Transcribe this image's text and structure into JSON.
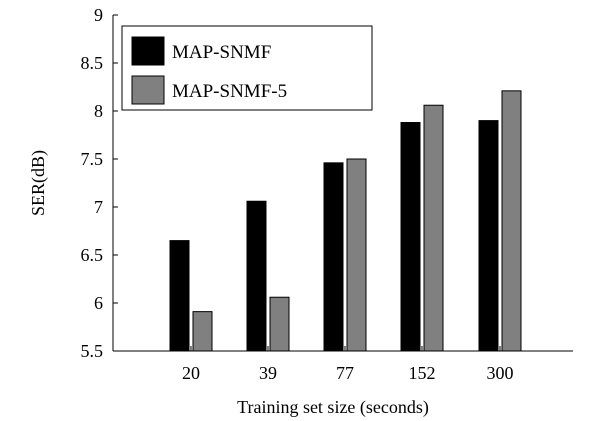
{
  "chart_data": {
    "type": "bar",
    "categories": [
      "20",
      "39",
      "77",
      "152",
      "300"
    ],
    "series": [
      {
        "name": "MAP-SNMF",
        "values": [
          6.65,
          7.06,
          7.46,
          7.88,
          7.9
        ],
        "color": "#000000"
      },
      {
        "name": "MAP-SNMF-5",
        "values": [
          5.91,
          6.06,
          7.5,
          8.06,
          8.21
        ],
        "color": "#808080"
      }
    ],
    "xlabel": "Training set size (seconds)",
    "ylabel": "SER(dB)",
    "ylim": [
      5.5,
      9
    ],
    "yticks": [
      5.5,
      6,
      6.5,
      7,
      7.5,
      8,
      8.5,
      9
    ],
    "ytick_labels": [
      "5.5",
      "6",
      "6.5",
      "7",
      "7.5",
      "8",
      "8.5",
      "9"
    ],
    "grid": false,
    "legend": "top-left"
  }
}
